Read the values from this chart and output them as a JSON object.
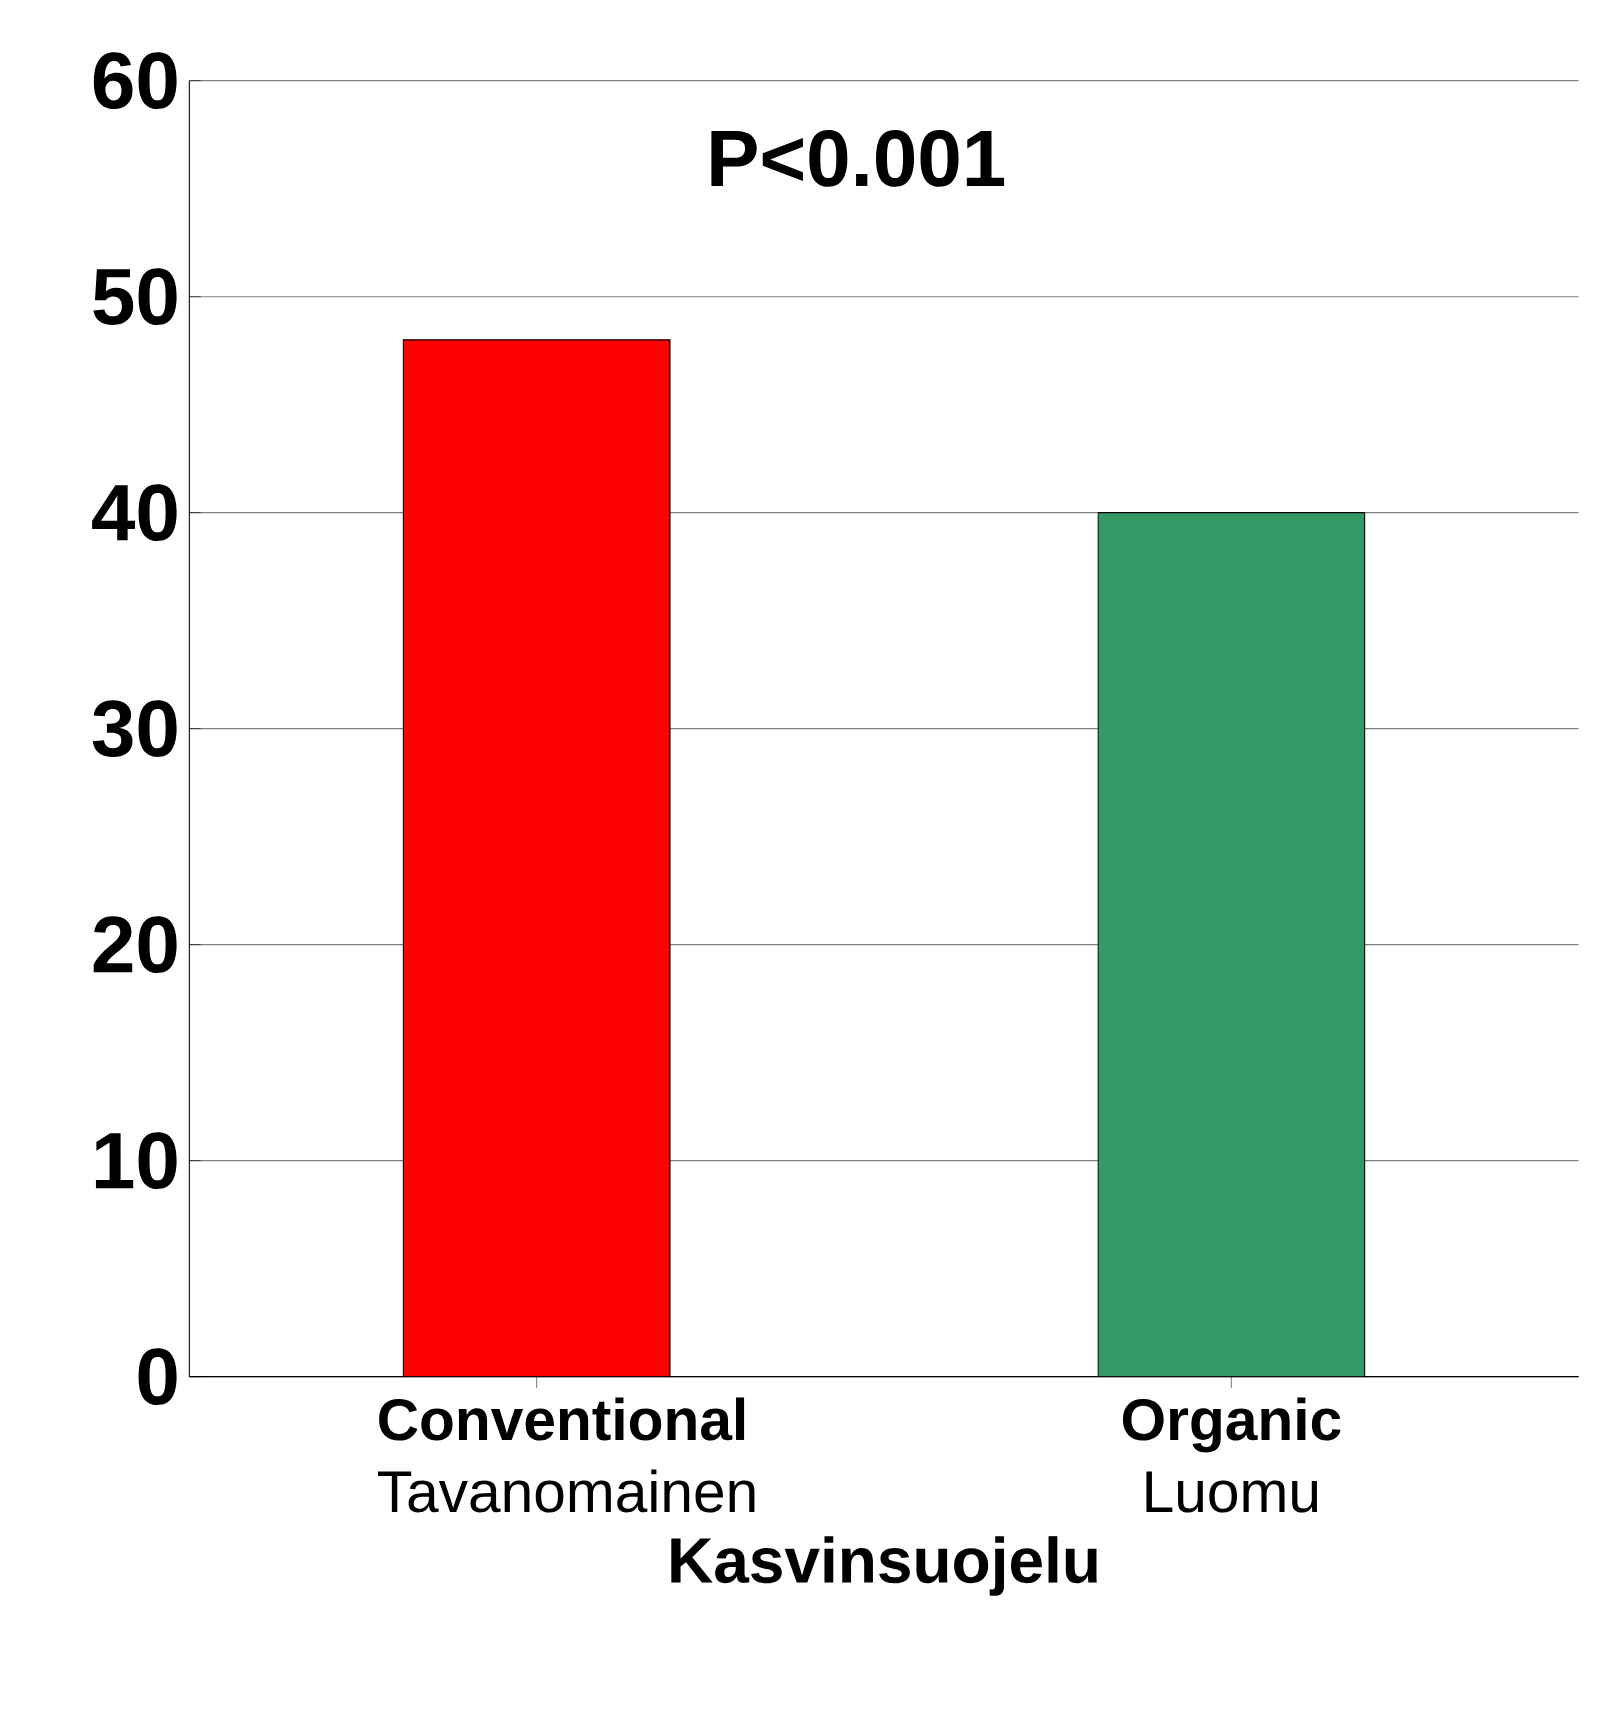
{
  "chart_data": {
    "type": "bar",
    "categories": [
      "**Conventional** Tavanomainen",
      "**Organic** Luomu"
    ],
    "values": [
      48,
      40
    ],
    "colors": [
      "#ff0000",
      "#339966"
    ],
    "ylim": [
      0,
      60
    ],
    "yticks": [
      0,
      10,
      20,
      30,
      40,
      50,
      60
    ],
    "grid": "y",
    "xlabel": "Kasvinsuojelu",
    "annotations": [
      "P<0.001"
    ]
  }
}
